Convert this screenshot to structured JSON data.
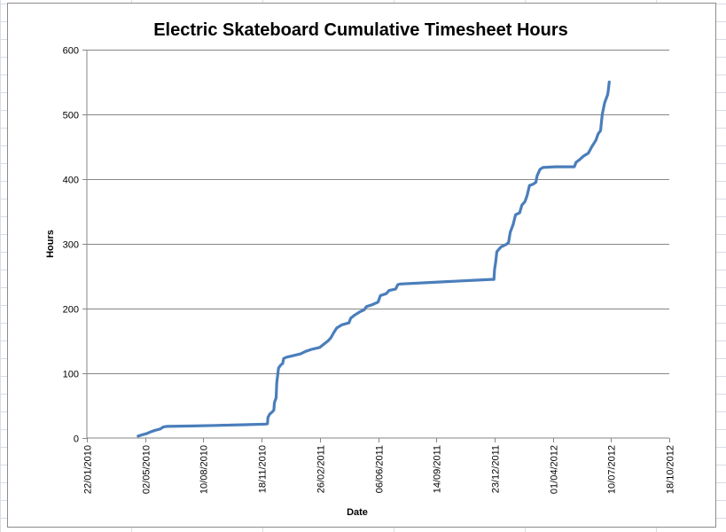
{
  "chart_data": {
    "type": "line",
    "title": "Electric Skateboard Cumulative Timesheet Hours",
    "xlabel": "Date",
    "ylabel": "Hours",
    "x_is_date": true,
    "xlim": [
      "2010-01-22",
      "2012-10-18"
    ],
    "ylim": [
      0,
      600
    ],
    "y_ticks": [
      0,
      100,
      200,
      300,
      400,
      500,
      600
    ],
    "x_tick_labels": [
      "22/01/2010",
      "02/05/2010",
      "10/08/2010",
      "18/11/2010",
      "26/02/2011",
      "06/06/2011",
      "14/09/2011",
      "23/12/2011",
      "01/04/2012",
      "10/07/2012",
      "18/10/2012"
    ],
    "x_ticks": [
      "2010-01-22",
      "2010-05-02",
      "2010-08-10",
      "2010-11-18",
      "2011-02-26",
      "2011-06-06",
      "2011-09-14",
      "2011-12-23",
      "2012-04-01",
      "2012-07-10",
      "2012-10-18"
    ],
    "grid": "horizontal",
    "legend": "none",
    "series": [
      {
        "color": "#4a7ebb",
        "points": [
          [
            "2010-04-20",
            3
          ],
          [
            "2010-04-27",
            5
          ],
          [
            "2010-05-05",
            7
          ],
          [
            "2010-05-13",
            10
          ],
          [
            "2010-05-20",
            12
          ],
          [
            "2010-05-28",
            14
          ],
          [
            "2010-06-02",
            17
          ],
          [
            "2010-06-08",
            18
          ],
          [
            "2010-07-15",
            18.5
          ],
          [
            "2010-09-01",
            19.5
          ],
          [
            "2010-10-20",
            20.5
          ],
          [
            "2010-11-25",
            21.5
          ],
          [
            "2010-11-28",
            22
          ],
          [
            "2010-11-29",
            32
          ],
          [
            "2010-12-02",
            37
          ],
          [
            "2010-12-06",
            40
          ],
          [
            "2010-12-09",
            43
          ],
          [
            "2010-12-10",
            55
          ],
          [
            "2010-12-13",
            62
          ],
          [
            "2010-12-14",
            85
          ],
          [
            "2010-12-17",
            108
          ],
          [
            "2010-12-21",
            113
          ],
          [
            "2010-12-24",
            115
          ],
          [
            "2010-12-26",
            123
          ],
          [
            "2010-12-31",
            125
          ],
          [
            "2011-01-10",
            127
          ],
          [
            "2011-01-24",
            130
          ],
          [
            "2011-02-02",
            134
          ],
          [
            "2011-02-12",
            137
          ],
          [
            "2011-02-26",
            140
          ],
          [
            "2011-03-05",
            145
          ],
          [
            "2011-03-12",
            150
          ],
          [
            "2011-03-17",
            155
          ],
          [
            "2011-03-22",
            163
          ],
          [
            "2011-03-27",
            170
          ],
          [
            "2011-04-05",
            175
          ],
          [
            "2011-04-17",
            178
          ],
          [
            "2011-04-20",
            185
          ],
          [
            "2011-04-27",
            190
          ],
          [
            "2011-05-06",
            195
          ],
          [
            "2011-05-13",
            198
          ],
          [
            "2011-05-17",
            203
          ],
          [
            "2011-05-27",
            206
          ],
          [
            "2011-06-06",
            210
          ],
          [
            "2011-06-10",
            220
          ],
          [
            "2011-06-20",
            223
          ],
          [
            "2011-06-25",
            228
          ],
          [
            "2011-07-06",
            230
          ],
          [
            "2011-07-10",
            237
          ],
          [
            "2011-07-14",
            238
          ],
          [
            "2011-12-18",
            245
          ],
          [
            "2011-12-22",
            245
          ],
          [
            "2011-12-23",
            260
          ],
          [
            "2011-12-25",
            272
          ],
          [
            "2011-12-27",
            288
          ],
          [
            "2012-01-03",
            295
          ],
          [
            "2012-01-12",
            299
          ],
          [
            "2012-01-16",
            302
          ],
          [
            "2012-01-19",
            318
          ],
          [
            "2012-01-24",
            330
          ],
          [
            "2012-01-28",
            345
          ],
          [
            "2012-02-04",
            348
          ],
          [
            "2012-02-08",
            360
          ],
          [
            "2012-02-13",
            365
          ],
          [
            "2012-02-17",
            375
          ],
          [
            "2012-02-21",
            390
          ],
          [
            "2012-02-27",
            392
          ],
          [
            "2012-03-03",
            395
          ],
          [
            "2012-03-05",
            405
          ],
          [
            "2012-03-10",
            415
          ],
          [
            "2012-03-15",
            418
          ],
          [
            "2012-04-05",
            419
          ],
          [
            "2012-05-08",
            419
          ],
          [
            "2012-05-11",
            426
          ],
          [
            "2012-05-17",
            430
          ],
          [
            "2012-05-23",
            435
          ],
          [
            "2012-06-01",
            440
          ],
          [
            "2012-06-07",
            450
          ],
          [
            "2012-06-14",
            460
          ],
          [
            "2012-06-18",
            470
          ],
          [
            "2012-06-22",
            475
          ],
          [
            "2012-06-25",
            500
          ],
          [
            "2012-06-29",
            518
          ],
          [
            "2012-07-04",
            530
          ],
          [
            "2012-07-05",
            535
          ],
          [
            "2012-07-07",
            550
          ]
        ]
      }
    ]
  }
}
